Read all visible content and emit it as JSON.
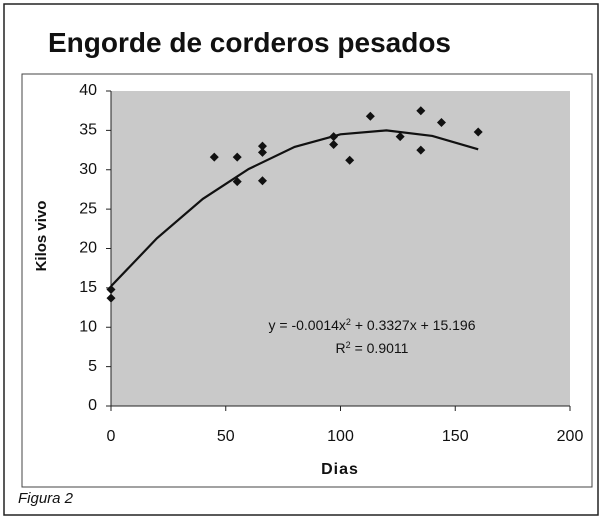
{
  "chart_data": {
    "type": "scatter",
    "title": "Engorde de corderos pesados",
    "x_label": "Dias",
    "y_label": "Kilos vivo",
    "caption": "Figura 2",
    "x": [
      0,
      0,
      45,
      55,
      55,
      66,
      66,
      66,
      97,
      97,
      104,
      113,
      126,
      135,
      135,
      144,
      160
    ],
    "values": [
      14.8,
      13.7,
      31.6,
      31.6,
      28.5,
      33.0,
      32.2,
      28.6,
      34.2,
      33.2,
      31.2,
      36.8,
      34.2,
      37.5,
      32.5,
      36.0,
      34.8
    ],
    "color": "#111111",
    "trendline": {
      "x": [
        0,
        20,
        40,
        60,
        80,
        100,
        120,
        140,
        160
      ],
      "values": [
        15.2,
        21.3,
        26.3,
        30.1,
        32.9,
        34.5,
        35.0,
        34.3,
        32.6
      ],
      "equation": [
        "y = -0.0014x",
        "2",
        " + 0.3327x + 15.196"
      ],
      "r2": [
        "R",
        "2",
        " = 0.9011"
      ]
    },
    "xlim": [
      0,
      200
    ],
    "xticks": [
      0,
      50,
      100,
      150,
      200
    ],
    "ylim": [
      0,
      40
    ],
    "yticks": [
      0,
      5,
      10,
      15,
      20,
      25,
      30,
      35,
      40
    ],
    "grid": false
  }
}
